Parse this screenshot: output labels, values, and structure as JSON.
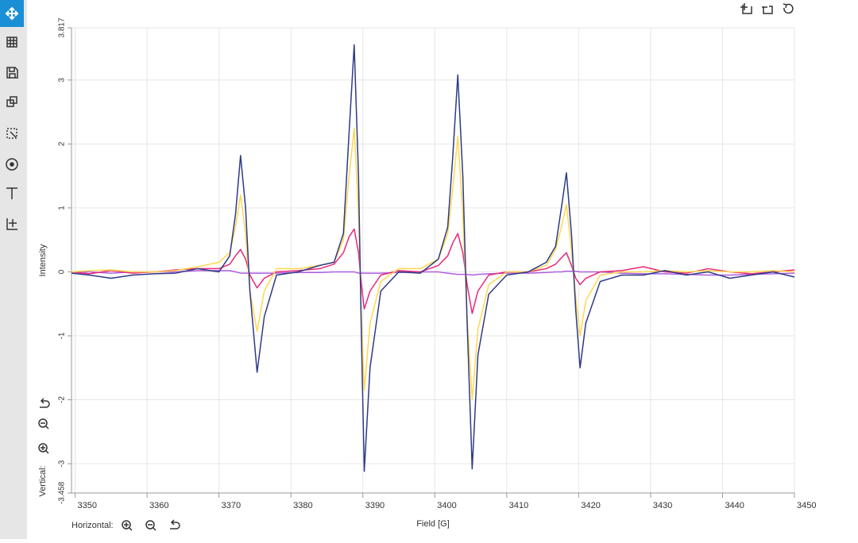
{
  "chart_data": {
    "type": "line",
    "x_label": "Field [G]",
    "y_label": "Intensity",
    "xlim": [
      3349.5,
      3450
    ],
    "ylim": [
      -3.458,
      3.817
    ],
    "xticks": [
      3350,
      3360,
      3370,
      3380,
      3390,
      3400,
      3410,
      3420,
      3430,
      3440,
      3450
    ],
    "yticks": [
      -3.458,
      -3,
      -2,
      -1,
      0,
      1,
      2,
      3,
      3.817
    ],
    "grid": true,
    "x": [
      3349.5,
      3352,
      3355,
      3358,
      3361,
      3364,
      3367,
      3370,
      3371.5,
      3372.3,
      3373,
      3373.7,
      3374.3,
      3375.3,
      3376.3,
      3378,
      3381,
      3384,
      3386,
      3387.3,
      3388.1,
      3388.8,
      3389.4,
      3389.8,
      3390.2,
      3391,
      3392.5,
      3395,
      3398,
      3400.5,
      3401.8,
      3402.5,
      3403.2,
      3403.9,
      3404.5,
      3405.2,
      3406,
      3407.5,
      3410,
      3413,
      3415.5,
      3416.8,
      3417.6,
      3418.3,
      3419,
      3419.6,
      3420.2,
      3421,
      3423,
      3426,
      3429,
      3432,
      3435,
      3438,
      3441,
      3444,
      3447,
      3450
    ],
    "series": [
      {
        "color": "#2e3a87",
        "values": [
          -0.02,
          -0.05,
          -0.1,
          -0.05,
          -0.03,
          -0.02,
          0.05,
          0,
          0.25,
          0.9,
          1.82,
          1,
          -0.3,
          -1.57,
          -0.7,
          -0.05,
          0,
          0.1,
          0.15,
          0.6,
          2.2,
          3.55,
          1.5,
          -1,
          -3.12,
          -1.5,
          -0.3,
          0,
          -0.02,
          0.2,
          0.7,
          1.8,
          3.08,
          1.5,
          -0.8,
          -3.08,
          -1.3,
          -0.35,
          -0.05,
          0,
          0.15,
          0.4,
          1,
          1.55,
          0.6,
          -0.6,
          -1.5,
          -0.8,
          -0.15,
          -0.05,
          -0.05,
          0.02,
          -0.05,
          0,
          -0.1,
          -0.05,
          0,
          -0.08
        ]
      },
      {
        "color": "#ffd84d",
        "values": [
          0,
          0.02,
          0.03,
          0,
          0,
          0.02,
          0.08,
          0.15,
          0.3,
          0.7,
          1.2,
          0.6,
          -0.3,
          -0.93,
          -0.3,
          0.05,
          0.05,
          0.1,
          0.15,
          0.5,
          1.5,
          2.25,
          0.9,
          -0.7,
          -1.85,
          -0.8,
          -0.15,
          0.05,
          0.05,
          0.2,
          0.6,
          1.3,
          2.12,
          0.9,
          -0.7,
          -2,
          -0.9,
          -0.2,
          0,
          0,
          0.1,
          0.35,
          0.7,
          1.05,
          0.35,
          -0.4,
          -1,
          -0.45,
          -0.05,
          0,
          0,
          0.02,
          0,
          0.02,
          0,
          0,
          0.02,
          0
        ]
      },
      {
        "color": "#e8287a",
        "values": [
          0,
          -0.03,
          0.02,
          -0.02,
          0,
          0.03,
          0.05,
          0.05,
          0.12,
          0.25,
          0.35,
          0.2,
          -0.05,
          -0.25,
          -0.1,
          0,
          0.02,
          0.05,
          0.12,
          0.3,
          0.55,
          0.67,
          0.3,
          -0.2,
          -0.58,
          -0.3,
          -0.05,
          0.02,
          0,
          0.1,
          0.25,
          0.45,
          0.6,
          0.3,
          -0.2,
          -0.65,
          -0.3,
          -0.05,
          0,
          0,
          0.05,
          0.12,
          0.22,
          0.3,
          0.1,
          -0.1,
          -0.2,
          -0.1,
          0,
          0.02,
          0.08,
          0,
          -0.02,
          0.05,
          0,
          -0.03,
          0,
          0.03
        ]
      },
      {
        "color": "#b05ee0",
        "values": [
          0,
          0,
          -0.02,
          0,
          0,
          0,
          0.02,
          0.02,
          0.02,
          0,
          -0.02,
          -0.02,
          -0.02,
          -0.02,
          -0.02,
          -0.02,
          -0.01,
          -0.01,
          0,
          0,
          0,
          0,
          -0.02,
          -0.02,
          -0.02,
          -0.02,
          -0.02,
          -0.01,
          0,
          0,
          -0.02,
          -0.03,
          -0.04,
          -0.04,
          -0.04,
          -0.05,
          -0.04,
          -0.03,
          -0.02,
          -0.02,
          -0.01,
          0,
          0,
          0.01,
          0.01,
          0.01,
          0,
          0,
          0,
          -0.02,
          -0.03,
          -0.03,
          -0.04,
          -0.05,
          -0.05,
          -0.04,
          -0.03,
          -0.02
        ]
      }
    ]
  },
  "controls": {
    "horizontal": "Horizontal:",
    "vertical": "Vertical:"
  }
}
